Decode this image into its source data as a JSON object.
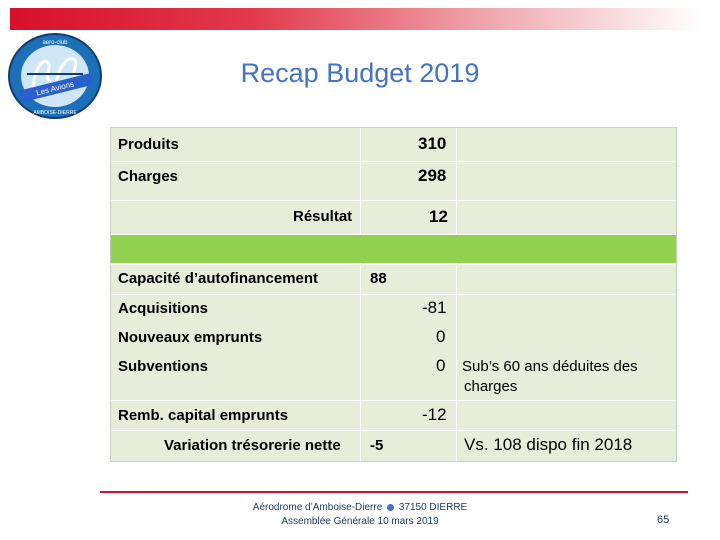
{
  "slide": {
    "title": "Recap Budget 2019",
    "page_number": "65"
  },
  "logo": {
    "top_text": "aero-club",
    "center_text": "Les Avions",
    "bottom_text": "AMBOISE-DIERRE"
  },
  "rows": {
    "produits": {
      "label": "Produits",
      "value": "310"
    },
    "charges": {
      "label": "Charges",
      "value": "298"
    },
    "resultat": {
      "label": "Résultat",
      "value": "12"
    },
    "caf": {
      "label": "Capacité d’autofinancement",
      "value": "88"
    },
    "acquisitions": {
      "label": "Acquisitions",
      "value": "-81"
    },
    "emprunts": {
      "label": "Nouveaux emprunts",
      "value": "0"
    },
    "subventions": {
      "label": "Subventions",
      "value": "0",
      "note_line1": "Sub’s 60 ans déduites des",
      "note_line2": "charges"
    },
    "remb": {
      "label": "Remb. capital emprunts",
      "value": "-12"
    },
    "variation": {
      "label": "Variation trésorerie nette",
      "value": "-5",
      "note": "Vs. 108 dispo fin 2018"
    }
  },
  "footer": {
    "line1_left": "Aérodrome d’Amboise-Dierre",
    "line1_right": "37150 DIERRE",
    "line2": "Assemblée Générale 10 mars 2019"
  },
  "colors": {
    "title": "#4472c4",
    "top_bar": "#d8102a",
    "table_bg": "#e6edd9",
    "highlight_row": "#92d050"
  }
}
